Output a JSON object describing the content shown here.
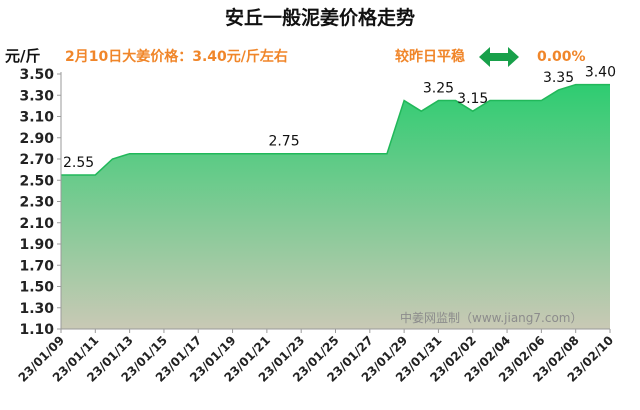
{
  "header": {
    "title": "安丘一般泥姜价格走势",
    "unit": "元/斤",
    "price_note": "2月10日大姜价格：3.40元/斤左右",
    "change_label": "较昨日平稳",
    "change_value": "0.00%",
    "change_icon": "left-right-arrow-icon"
  },
  "watermark": "中姜网监制（www.jiang7.com）",
  "colors": {
    "accent": "#f0862a",
    "fill_top": "#2ecc71",
    "fill_bottom": "#c9c9b5",
    "line": "#21b85a",
    "arrow": "#18a04a"
  },
  "chart_data": {
    "type": "area",
    "title": "安丘一般泥姜价格走势",
    "ylabel": "元/斤",
    "xlabel": "",
    "ylim": [
      1.1,
      3.5
    ],
    "ytick_step": 0.2,
    "grid": false,
    "x_tick_labels": [
      "23/01/09",
      "23/01/11",
      "23/01/13",
      "23/01/15",
      "23/01/17",
      "23/01/19",
      "23/01/21",
      "23/01/23",
      "23/01/25",
      "23/01/27",
      "23/01/29",
      "23/01/31",
      "23/02/02",
      "23/02/04",
      "23/02/06",
      "23/02/08",
      "23/02/10"
    ],
    "series": [
      {
        "name": "",
        "x": [
          "23/01/09",
          "23/01/10",
          "23/01/11",
          "23/01/12",
          "23/01/13",
          "23/01/14",
          "23/01/15",
          "23/01/16",
          "23/01/17",
          "23/01/18",
          "23/01/19",
          "23/01/20",
          "23/01/21",
          "23/01/22",
          "23/01/23",
          "23/01/24",
          "23/01/25",
          "23/01/26",
          "23/01/27",
          "23/01/28",
          "23/01/29",
          "23/01/30",
          "23/01/31",
          "23/02/01",
          "23/02/02",
          "23/02/03",
          "23/02/04",
          "23/02/05",
          "23/02/06",
          "23/02/07",
          "23/02/08",
          "23/02/09",
          "23/02/10"
        ],
        "values": [
          2.55,
          2.55,
          2.55,
          2.7,
          2.75,
          2.75,
          2.75,
          2.75,
          2.75,
          2.75,
          2.75,
          2.75,
          2.75,
          2.75,
          2.75,
          2.75,
          2.75,
          2.75,
          2.75,
          2.75,
          3.25,
          3.15,
          3.25,
          3.25,
          3.15,
          3.25,
          3.25,
          3.25,
          3.25,
          3.35,
          3.4,
          3.4,
          3.4
        ]
      }
    ],
    "annotations": [
      {
        "x": "23/01/09",
        "text": "2.55"
      },
      {
        "x": "23/01/22",
        "text": "2.75"
      },
      {
        "x": "23/01/31",
        "text": "3.25"
      },
      {
        "x": "23/02/02",
        "text": "3.15"
      },
      {
        "x": "23/02/07",
        "text": "3.35"
      },
      {
        "x": "23/02/10",
        "text": "3.40"
      }
    ]
  }
}
